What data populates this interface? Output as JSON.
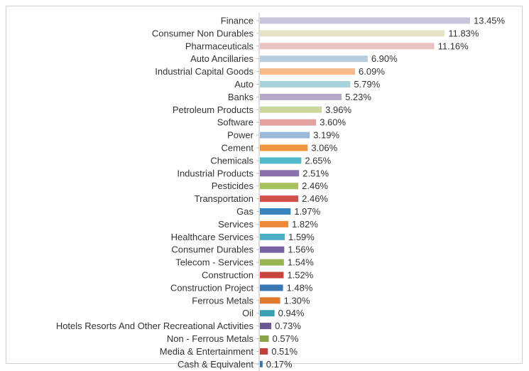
{
  "chart_data": {
    "type": "bar",
    "orientation": "horizontal",
    "categories": [
      "Finance",
      "Consumer Non Durables",
      "Pharmaceuticals",
      "Auto Ancillaries",
      "Industrial Capital Goods",
      "Auto",
      "Banks",
      "Petroleum Products",
      "Software",
      "Power",
      "Cement",
      "Chemicals",
      "Industrial Products",
      "Pesticides",
      "Transportation",
      "Gas",
      "Services",
      "Healthcare Services",
      "Consumer Durables",
      "Telecom - Services",
      "Construction",
      "Construction Project",
      "Ferrous Metals",
      "Oil",
      "Hotels Resorts And Other Recreational Activities",
      "Non - Ferrous Metals",
      "Media & Entertainment",
      "Cash & Equivalent"
    ],
    "values": [
      13.45,
      11.83,
      11.16,
      6.9,
      6.09,
      5.79,
      5.23,
      3.96,
      3.6,
      3.19,
      3.06,
      2.65,
      2.51,
      2.46,
      2.46,
      1.97,
      1.82,
      1.59,
      1.56,
      1.54,
      1.52,
      1.48,
      1.3,
      0.94,
      0.73,
      0.57,
      0.51,
      0.17
    ],
    "value_labels": [
      "13.45%",
      "11.83%",
      "11.16%",
      "6.90%",
      "6.09%",
      "5.79%",
      "5.23%",
      "3.96%",
      "3.60%",
      "3.19%",
      "3.06%",
      "2.65%",
      "2.51%",
      "2.46%",
      "2.46%",
      "1.97%",
      "1.82%",
      "1.59%",
      "1.56%",
      "1.54%",
      "1.52%",
      "1.48%",
      "1.30%",
      "0.94%",
      "0.73%",
      "0.57%",
      "0.51%",
      "0.17%"
    ],
    "colors": [
      "#c9c6dc",
      "#e5e5c6",
      "#e9c3bf",
      "#b8cde0",
      "#f8b98a",
      "#a7d2dc",
      "#b3a9c9",
      "#cad89f",
      "#e2a3a1",
      "#9cb8db",
      "#f0953c",
      "#53b9cd",
      "#8a71ad",
      "#a8c15c",
      "#d1504c",
      "#3685c0",
      "#ee8a3b",
      "#4aafc3",
      "#7a63a3",
      "#9ab454",
      "#c9443f",
      "#3a78b3",
      "#e07a2d",
      "#3ba1b2",
      "#6a5894",
      "#8aa349",
      "#c0403c",
      "#3873b0"
    ],
    "xlim": [
      0,
      14
    ],
    "grid": false,
    "legend": "none"
  }
}
